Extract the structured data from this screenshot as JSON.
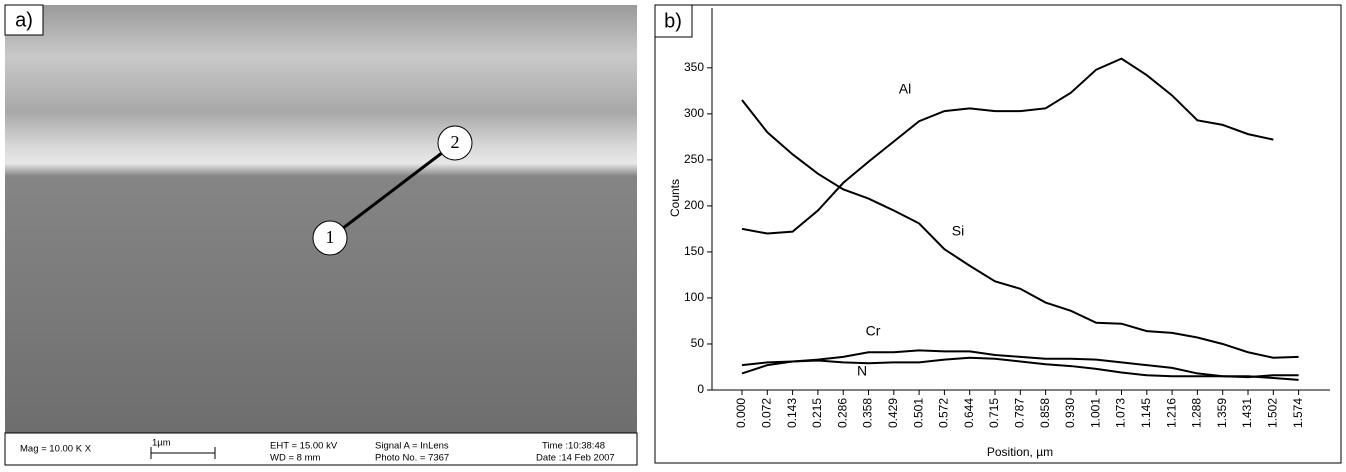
{
  "image_panel": {
    "panel_label": "a)",
    "markers": [
      "1",
      "2"
    ],
    "info": {
      "mag": "Mag = 10.00 K X",
      "scale": "1µm",
      "eht": "EHT = 15.00 kV",
      "wd": "WD =  8 mm",
      "signal": "Signal A = InLens",
      "photo": "Photo No. = 7367",
      "time": "Time :10:38:48",
      "date": "Date :14 Feb 2007"
    }
  },
  "chart_data": {
    "type": "line",
    "panel_label": "b)",
    "x_label": "Position, µm",
    "y_label": "Counts",
    "categories": [
      "0.000",
      "0.072",
      "0.143",
      "0.215",
      "0.286",
      "0.358",
      "0.429",
      "0.501",
      "0.572",
      "0.644",
      "0.715",
      "0.787",
      "0.858",
      "0.930",
      "1.001",
      "1.073",
      "1.145",
      "1.216",
      "1.288",
      "1.359",
      "1.431",
      "1.502",
      "1.574"
    ],
    "series": [
      {
        "name": "Al",
        "color": "#000000",
        "values": [
          175,
          170,
          172,
          195,
          225,
          248,
          270,
          292,
          303,
          306,
          303,
          303,
          306,
          323,
          348,
          360,
          342,
          320,
          293,
          288,
          278,
          272,
          null
        ]
      },
      {
        "name": "Si",
        "color": "#000000",
        "values": [
          315,
          280,
          256,
          235,
          218,
          208,
          195,
          181,
          153,
          135,
          118,
          110,
          95,
          86,
          73,
          72,
          64,
          62,
          57,
          50,
          41,
          35,
          36
        ]
      },
      {
        "name": "Cr",
        "color": "#000000",
        "values": [
          27,
          30,
          31,
          33,
          36,
          41,
          41,
          43,
          42,
          42,
          38,
          36,
          34,
          34,
          33,
          30,
          27,
          24,
          18,
          15,
          14,
          16,
          16
        ]
      },
      {
        "name": "N",
        "color": "#000000",
        "values": [
          18,
          27,
          31,
          32,
          30,
          29,
          30,
          30,
          33,
          35,
          34,
          31,
          28,
          26,
          23,
          19,
          16,
          15,
          15,
          15,
          15,
          13,
          11
        ]
      }
    ],
    "ylim": [
      0,
      415
    ],
    "yticks": [
      0,
      50,
      100,
      150,
      200,
      250,
      300,
      350
    ]
  }
}
